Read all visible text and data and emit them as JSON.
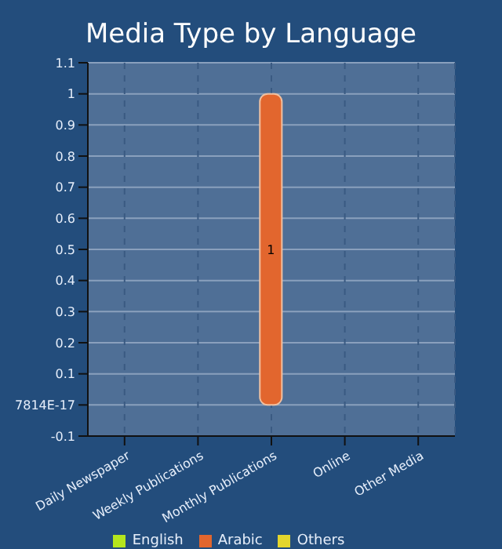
{
  "chart_data": {
    "type": "bar",
    "title": "Media Type by Language",
    "categories": [
      "Daily Newspaper",
      "Weekly Publications",
      "Monthly Publications",
      "Online",
      "Other Media"
    ],
    "series": [
      {
        "name": "English",
        "color": "#b5e61d",
        "values": [
          null,
          null,
          null,
          null,
          null
        ]
      },
      {
        "name": "Arabic",
        "color": "#e2662e",
        "values": [
          null,
          null,
          1,
          null,
          null
        ]
      },
      {
        "name": "Others",
        "color": "#e3d52c",
        "values": [
          null,
          null,
          null,
          null,
          null
        ]
      }
    ],
    "ylim": [
      -0.1,
      1.1
    ],
    "yticks": [
      -0.1,
      {
        "value": 0,
        "label": "7814E-17"
      },
      0.1,
      0.2,
      0.3,
      0.4,
      0.5,
      0.6,
      0.7,
      0.8,
      0.9,
      1,
      1.1
    ],
    "grid": true,
    "legend": "bottom",
    "data_labels": true
  }
}
